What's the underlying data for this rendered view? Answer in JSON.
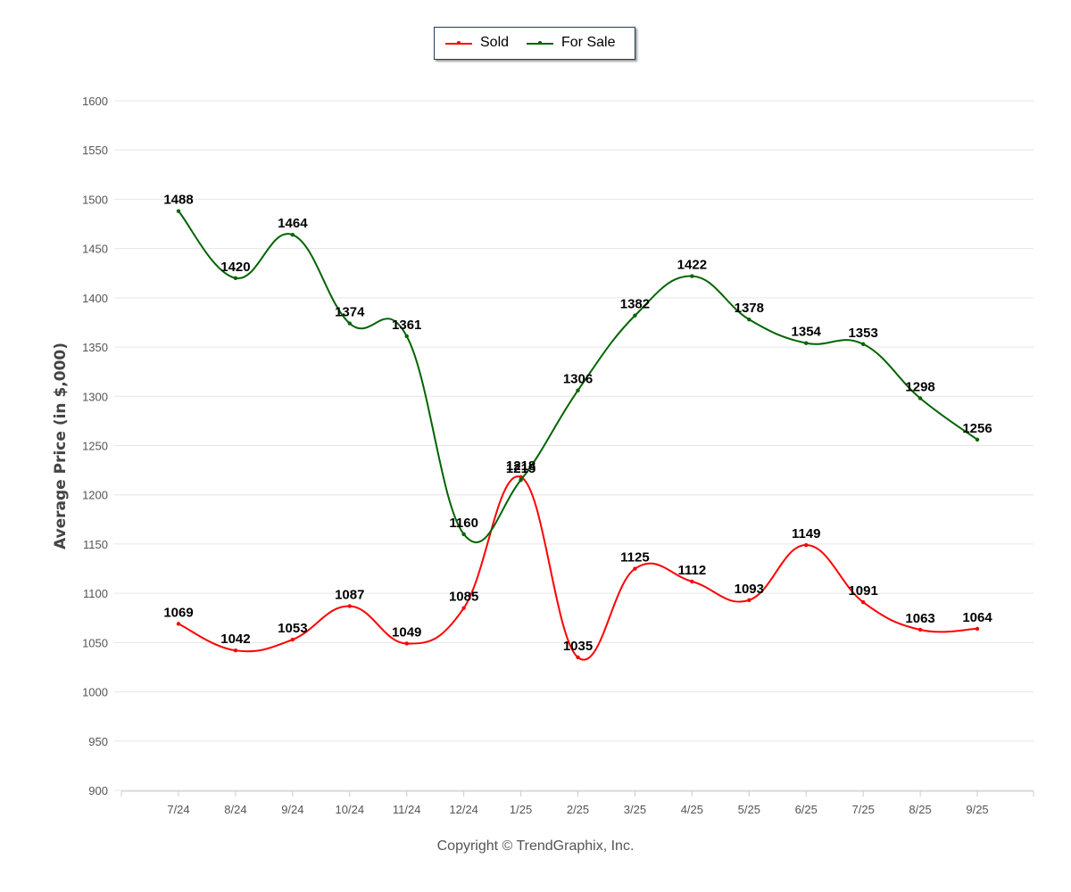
{
  "chart_data": {
    "type": "line",
    "title": "",
    "xlabel": "",
    "ylabel": "Average Price (in $,000)",
    "ylim": [
      900,
      1600
    ],
    "yticks": [
      900,
      950,
      1000,
      1050,
      1100,
      1150,
      1200,
      1250,
      1300,
      1350,
      1400,
      1450,
      1500,
      1550,
      1600
    ],
    "grid": true,
    "legend_placement": "top-center",
    "categories": [
      "7/24",
      "8/24",
      "9/24",
      "10/24",
      "11/24",
      "12/24",
      "1/25",
      "2/25",
      "3/25",
      "4/25",
      "5/25",
      "6/25",
      "7/25",
      "8/25",
      "9/25"
    ],
    "series": [
      {
        "name": "Sold",
        "color": "#ff0000",
        "values": [
          1069,
          1042,
          1053,
          1087,
          1049,
          1085,
          1218,
          1035,
          1125,
          1112,
          1093,
          1149,
          1091,
          1063,
          1064
        ]
      },
      {
        "name": "For Sale",
        "color": "#006400",
        "values": [
          1488,
          1420,
          1464,
          1374,
          1361,
          1160,
          1215,
          1306,
          1382,
          1422,
          1378,
          1354,
          1353,
          1298,
          1256
        ]
      }
    ]
  },
  "legend": {
    "sold_label": "Sold",
    "for_sale_label": "For Sale"
  },
  "footer": {
    "copyright": "Copyright © TrendGraphix, Inc."
  }
}
